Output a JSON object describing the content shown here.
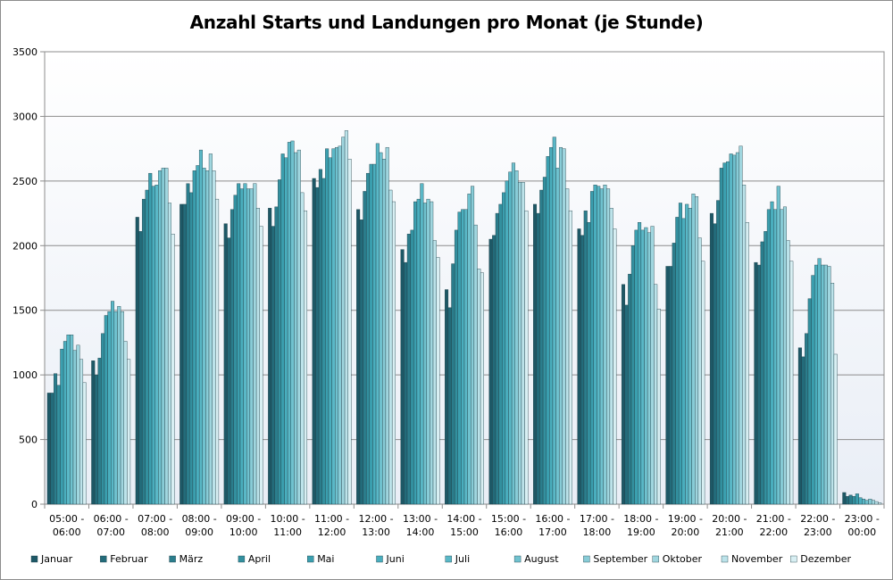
{
  "chart_data": {
    "type": "bar",
    "title": "Anzahl Starts und Landungen pro Monat (je Stunde)",
    "xlabel": "",
    "ylabel": "",
    "ylim": [
      0,
      3500
    ],
    "yticks": [
      0,
      500,
      1000,
      1500,
      2000,
      2500,
      3000,
      3500
    ],
    "grid": true,
    "legend_position": "bottom",
    "categories": [
      [
        "05:00 -",
        "06:00"
      ],
      [
        "06:00 -",
        "07:00"
      ],
      [
        "07:00 -",
        "08:00"
      ],
      [
        "08:00 -",
        "09:00"
      ],
      [
        "09:00 -",
        "10:00"
      ],
      [
        "10:00 -",
        "11:00"
      ],
      [
        "11:00 -",
        "12:00"
      ],
      [
        "12:00 -",
        "13:00"
      ],
      [
        "13:00 -",
        "14:00"
      ],
      [
        "14:00 -",
        "15:00"
      ],
      [
        "15:00 -",
        "16:00"
      ],
      [
        "16:00 -",
        "17:00"
      ],
      [
        "17:00 -",
        "18:00"
      ],
      [
        "18:00 -",
        "19:00"
      ],
      [
        "19:00 -",
        "20:00"
      ],
      [
        "20:00 -",
        "21:00"
      ],
      [
        "21:00 -",
        "22:00"
      ],
      [
        "22:00 -",
        "23:00"
      ],
      [
        "23:00 -",
        "00:00"
      ]
    ],
    "series": [
      {
        "name": "Januar",
        "color": "#1d5866",
        "values": [
          860,
          1110,
          2220,
          2320,
          2170,
          2290,
          2520,
          2280,
          1970,
          1660,
          2050,
          2320,
          2130,
          1700,
          1840,
          2250,
          1870,
          1210,
          90
        ]
      },
      {
        "name": "Februar",
        "color": "#236b7a",
        "values": [
          860,
          1000,
          2110,
          2320,
          2060,
          2150,
          2450,
          2200,
          1870,
          1520,
          2080,
          2250,
          2080,
          1540,
          1840,
          2170,
          1850,
          1140,
          60
        ]
      },
      {
        "name": "März",
        "color": "#2b7d8c",
        "values": [
          1010,
          1130,
          2360,
          2480,
          2280,
          2300,
          2590,
          2420,
          2090,
          1860,
          2250,
          2430,
          2270,
          1780,
          2020,
          2350,
          2030,
          1320,
          70
        ]
      },
      {
        "name": "April",
        "color": "#33909f",
        "values": [
          920,
          1320,
          2430,
          2410,
          2390,
          2510,
          2520,
          2560,
          2120,
          2120,
          2320,
          2530,
          2180,
          2000,
          2220,
          2600,
          2110,
          1590,
          60
        ]
      },
      {
        "name": "Mai",
        "color": "#3b9faf",
        "values": [
          1200,
          1460,
          2560,
          2580,
          2480,
          2710,
          2750,
          2630,
          2340,
          2260,
          2410,
          2690,
          2420,
          2120,
          2330,
          2640,
          2280,
          1770,
          80
        ]
      },
      {
        "name": "Juni",
        "color": "#4aaebe",
        "values": [
          1260,
          1490,
          2460,
          2620,
          2440,
          2680,
          2680,
          2630,
          2360,
          2280,
          2500,
          2760,
          2470,
          2180,
          2210,
          2650,
          2340,
          1850,
          50
        ]
      },
      {
        "name": "Juli",
        "color": "#5ab8c7",
        "values": [
          1310,
          1570,
          2470,
          2740,
          2480,
          2800,
          2750,
          2790,
          2480,
          2280,
          2570,
          2840,
          2460,
          2120,
          2320,
          2710,
          2280,
          1900,
          40
        ]
      },
      {
        "name": "August",
        "color": "#70c2cf",
        "values": [
          1310,
          1490,
          2580,
          2600,
          2440,
          2810,
          2760,
          2720,
          2330,
          2400,
          2640,
          2600,
          2440,
          2140,
          2290,
          2700,
          2460,
          1850,
          30
        ]
      },
      {
        "name": "September",
        "color": "#88ccd7",
        "values": [
          1190,
          1530,
          2600,
          2580,
          2440,
          2720,
          2770,
          2670,
          2360,
          2460,
          2580,
          2760,
          2470,
          2100,
          2400,
          2720,
          2280,
          1850,
          40
        ]
      },
      {
        "name": "Oktober",
        "color": "#a0d6df",
        "values": [
          1230,
          1490,
          2600,
          2710,
          2480,
          2740,
          2840,
          2760,
          2340,
          2160,
          2490,
          2750,
          2440,
          2150,
          2380,
          2770,
          2300,
          1840,
          30
        ]
      },
      {
        "name": "November",
        "color": "#bce3ea",
        "values": [
          1120,
          1260,
          2330,
          2580,
          2290,
          2410,
          2890,
          2430,
          2040,
          1820,
          2490,
          2440,
          2290,
          1700,
          2060,
          2470,
          2040,
          1710,
          20
        ]
      },
      {
        "name": "Dezember",
        "color": "#d8eff3",
        "values": [
          940,
          1120,
          2090,
          2360,
          2150,
          2270,
          2670,
          2340,
          1910,
          1790,
          2270,
          2270,
          2130,
          1510,
          1880,
          2180,
          1880,
          1160,
          10
        ]
      }
    ]
  }
}
